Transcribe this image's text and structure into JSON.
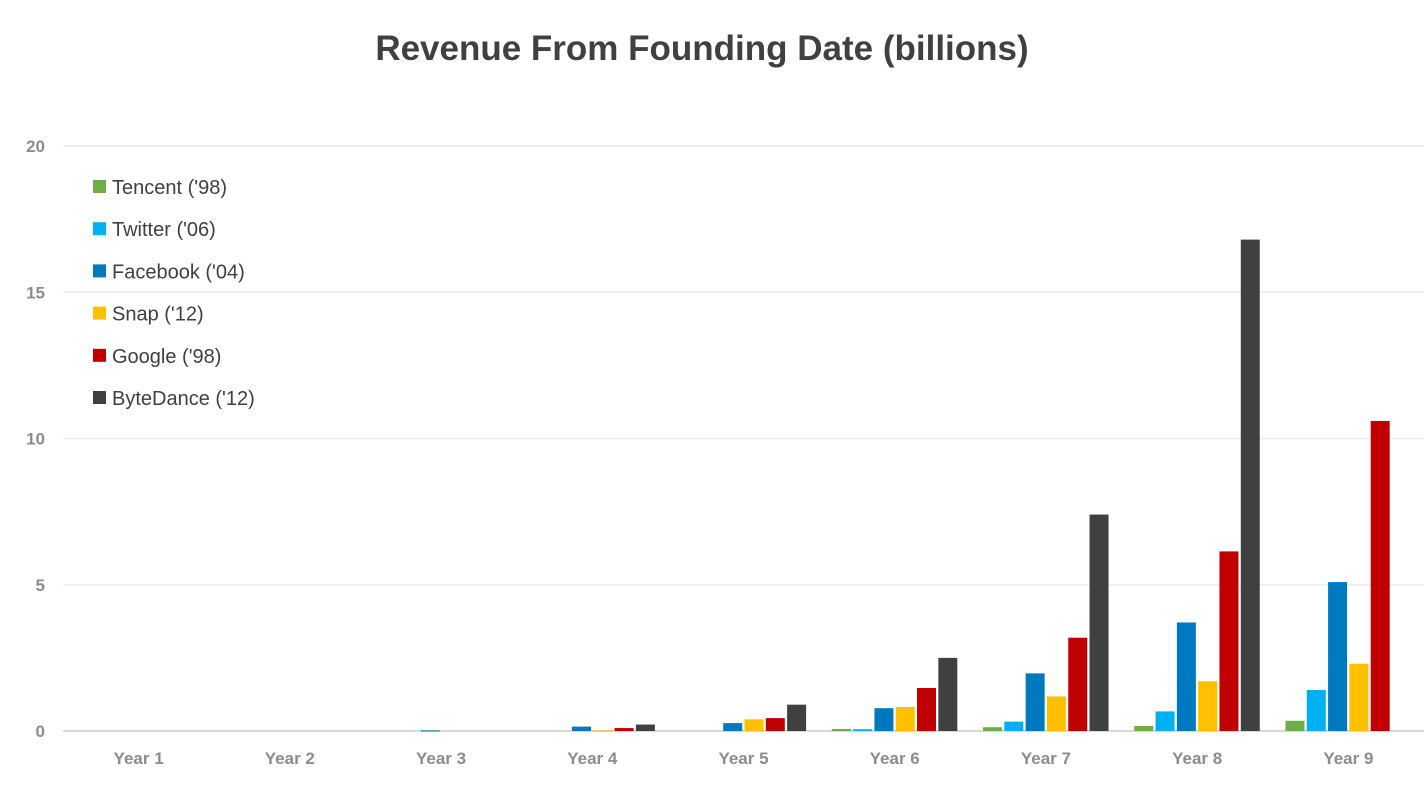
{
  "chart_data": {
    "type": "bar",
    "title": "Revenue From Founding Date (billions)",
    "xlabel": "",
    "ylabel": "",
    "ylim": [
      0,
      20
    ],
    "yticks": [
      0,
      5,
      10,
      15,
      20
    ],
    "grid": true,
    "legend_position": "top-left",
    "categories": [
      "Year 1",
      "Year 2",
      "Year 3",
      "Year 4",
      "Year 5",
      "Year 6",
      "Year 7",
      "Year 8",
      "Year 9"
    ],
    "series": [
      {
        "name": "Tencent ('98)",
        "color": "#70AD47",
        "values": [
          0,
          0,
          0,
          0,
          0,
          0.07,
          0.13,
          0.17,
          0.35
        ]
      },
      {
        "name": "Twitter ('06)",
        "color": "#00B0F0",
        "values": [
          0,
          0,
          0,
          0,
          0,
          0.06,
          0.32,
          0.67,
          1.4
        ]
      },
      {
        "name": "Facebook ('04)",
        "color": "#0079BF",
        "values": [
          0,
          0,
          0.02,
          0.15,
          0.27,
          0.78,
          1.97,
          3.71,
          5.09
        ]
      },
      {
        "name": "Snap ('12)",
        "color": "#FFC000",
        "values": [
          0,
          0,
          0,
          0.02,
          0.4,
          0.82,
          1.18,
          1.7,
          2.3
        ]
      },
      {
        "name": "Google ('98)",
        "color": "#C00000",
        "values": [
          0,
          0,
          0,
          0.1,
          0.44,
          1.47,
          3.19,
          6.14,
          10.6
        ]
      },
      {
        "name": "ByteDance ('12)",
        "color": "#404040",
        "values": [
          0,
          0,
          0,
          0.22,
          0.9,
          2.5,
          7.4,
          16.8,
          null
        ]
      }
    ]
  }
}
